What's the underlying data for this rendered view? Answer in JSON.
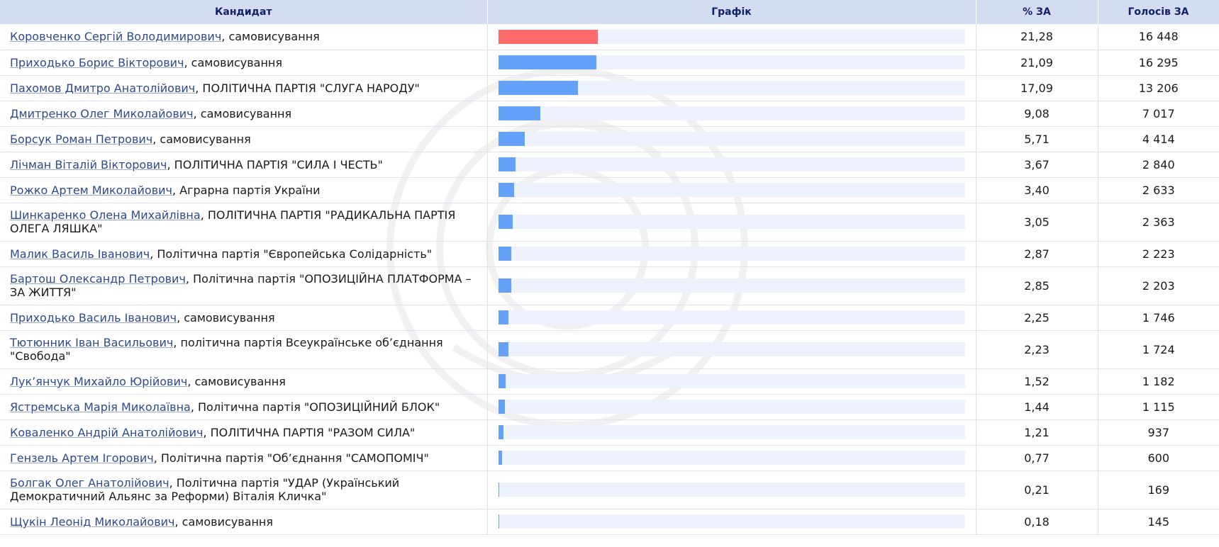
{
  "table": {
    "headers": {
      "candidate": "Кандидат",
      "graph": "Графік",
      "percent": "% ЗА",
      "votes": "Голосів ЗА"
    },
    "scale_max_percent": 100,
    "colors": {
      "leader_bar": "#ff6b6b",
      "bar": "#63a2f8",
      "track": "#edf2fd",
      "header_bg": "#d4dcf2",
      "header_text": "#12206b",
      "link": "#2d4a8c"
    },
    "rows": [
      {
        "name": "Коровченко Сергій Володимирович",
        "party": ", самовисування",
        "percent": "21,28",
        "value": 21.28,
        "votes": "16 448",
        "leader": true
      },
      {
        "name": "Приходько Борис Вікторович",
        "party": ", самовисування",
        "percent": "21,09",
        "value": 21.09,
        "votes": "16 295"
      },
      {
        "name": "Пахомов Дмитро Анатолійович",
        "party": ", ПОЛІТИЧНА ПАРТІЯ \"СЛУГА НАРОДУ\"",
        "percent": "17,09",
        "value": 17.09,
        "votes": "13 206"
      },
      {
        "name": "Дмитренко Олег Миколайович",
        "party": ", самовисування",
        "percent": "9,08",
        "value": 9.08,
        "votes": "7 017"
      },
      {
        "name": "Борсук Роман Петрович",
        "party": ", самовисування",
        "percent": "5,71",
        "value": 5.71,
        "votes": "4 414"
      },
      {
        "name": "Лічман Віталій Вікторович",
        "party": ", ПОЛІТИЧНА ПАРТІЯ \"СИЛА І ЧЕСТЬ\"",
        "percent": "3,67",
        "value": 3.67,
        "votes": "2 840"
      },
      {
        "name": "Рожко Артем Миколайович",
        "party": ", Аграрна партія України",
        "percent": "3,40",
        "value": 3.4,
        "votes": "2 633"
      },
      {
        "name": "Шинкаренко Олена Михайлівна",
        "party": ", ПОЛІТИЧНА ПАРТІЯ \"РАДИКАЛЬНА ПАРТІЯ ОЛЕГА ЛЯШКА\"",
        "percent": "3,05",
        "value": 3.05,
        "votes": "2 363",
        "tall": true
      },
      {
        "name": "Малик Василь Іванович",
        "party": ", Політична партія \"Європейська Солідарність\"",
        "percent": "2,87",
        "value": 2.87,
        "votes": "2 223"
      },
      {
        "name": "Бартош Олександр Петрович",
        "party": ", Політична партія \"ОПОЗИЦІЙНА ПЛАТФОРМА – ЗА ЖИТТЯ\"",
        "percent": "2,85",
        "value": 2.85,
        "votes": "2 203",
        "tall": true
      },
      {
        "name": "Приходько Василь Іванович",
        "party": ", самовисування",
        "percent": "2,25",
        "value": 2.25,
        "votes": "1 746"
      },
      {
        "name": "Тютюнник Іван Васильович",
        "party": ", політична партія Всеукраїнське об’єднання \"Свобода\"",
        "percent": "2,23",
        "value": 2.23,
        "votes": "1 724",
        "tall": true
      },
      {
        "name": "Лук’янчук Михайло Юрійович",
        "party": ", самовисування",
        "percent": "1,52",
        "value": 1.52,
        "votes": "1 182"
      },
      {
        "name": "Ястремська Марія Миколаївна",
        "party": ", Політична партія \"ОПОЗИЦІЙНИЙ БЛОК\"",
        "percent": "1,44",
        "value": 1.44,
        "votes": "1 115"
      },
      {
        "name": "Коваленко Андрій Анатолійович",
        "party": ", ПОЛІТИЧНА ПАРТІЯ \"РАЗОМ СИЛА\"",
        "percent": "1,21",
        "value": 1.21,
        "votes": "937"
      },
      {
        "name": "Гензель Артем Ігорович",
        "party": ", Політична партія \"Об’єднання \"САМОПОМІЧ\"",
        "percent": "0,77",
        "value": 0.77,
        "votes": "600"
      },
      {
        "name": "Болгак Олег Анатолійович",
        "party": ", Політична партія \"УДАР (Український Демократичний Альянс за Реформи) Віталія Кличка\"",
        "percent": "0,21",
        "value": 0.21,
        "votes": "169",
        "tall": true
      },
      {
        "name": "Щукін Леонід Миколайович",
        "party": ", самовисування",
        "percent": "0,18",
        "value": 0.18,
        "votes": "145"
      }
    ]
  }
}
